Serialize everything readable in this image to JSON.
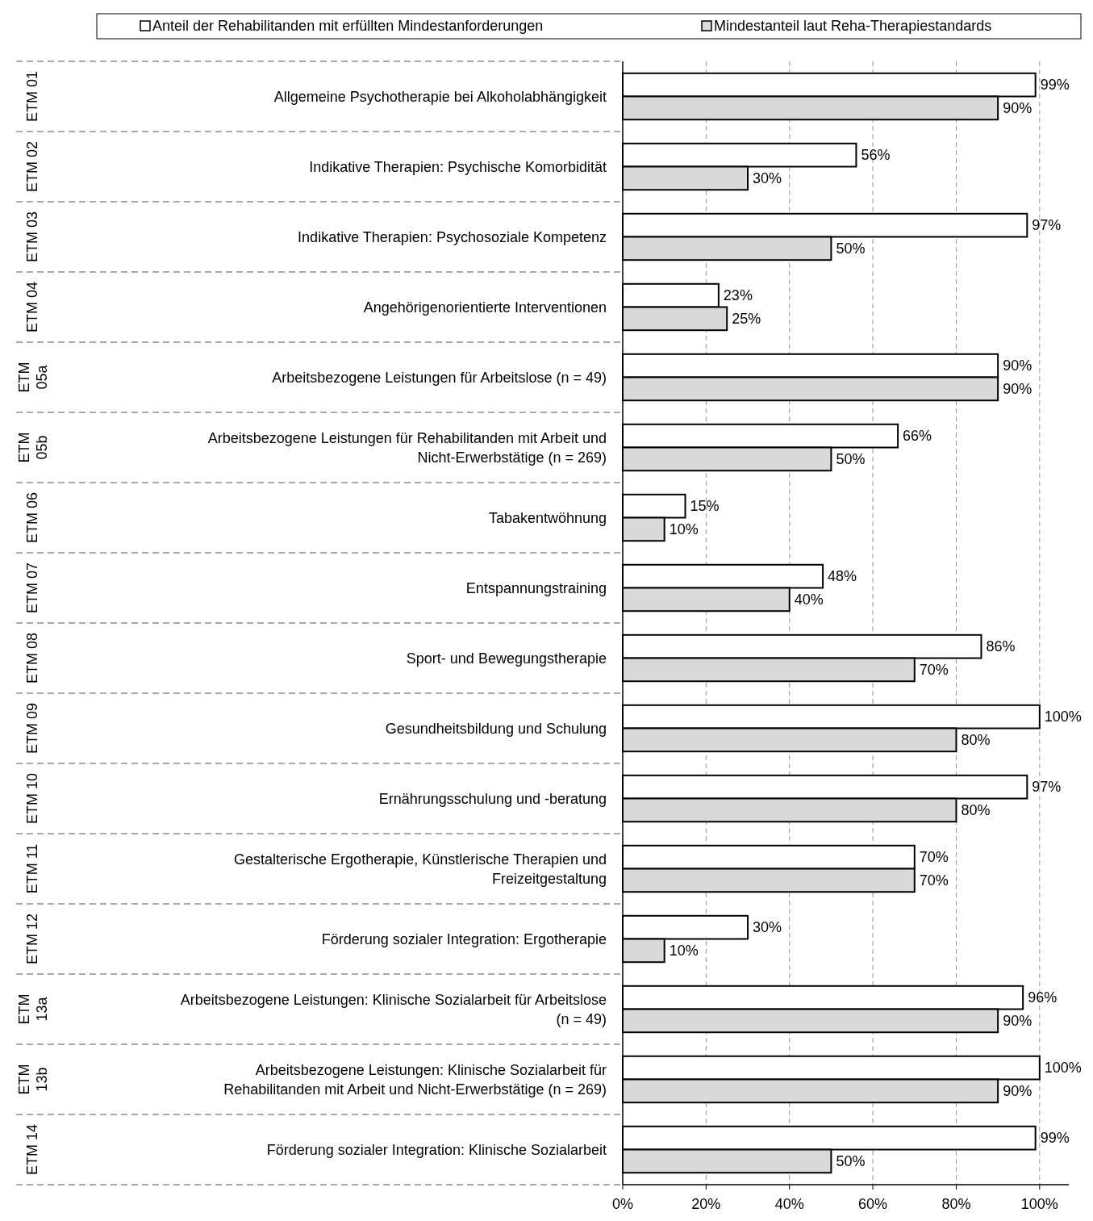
{
  "chart_data": {
    "type": "bar",
    "orientation": "horizontal",
    "categories": [
      "Allgemeine Psychotherapie bei Alkoholabhängigkeit",
      "Indikative Therapien: Psychische Komorbidität",
      "Indikative Therapien: Psychosoziale Kompetenz",
      "Angehörigenorientierte Interventionen",
      "Arbeitsbezogene Leistungen für Arbeitslose (n = 49)",
      "Arbeitsbezogene Leistungen für Rehabilitanden mit Arbeit und Nicht-Erwerbstätige (n = 269)",
      "Tabakentwöhnung",
      "Entspannungstraining",
      "Sport- und Bewegungstherapie",
      "Gesundheitsbildung und Schulung",
      "Ernährungsschulung und -beratung",
      "Gestalterische Ergotherapie, Künstlerische Therapien und Freizeitgestaltung",
      "Förderung sozialer Integration: Ergotherapie",
      "Arbeitsbezogene Leistungen: Klinische Sozialarbeit für Arbeitslose (n = 49)",
      "Arbeitsbezogene Leistungen: Klinische Sozialarbeit  für Rehabilitanden mit Arbeit und Nicht-Erwerbstätige (n = 269)",
      "Förderung sozialer Integration: Klinische Sozialarbeit"
    ],
    "series": [
      {
        "name": "Anteil der Rehabilitanden mit erfüllten Mindestanforderungen",
        "color": "#ffffff",
        "values": [
          99,
          56,
          97,
          23,
          90,
          66,
          15,
          48,
          86,
          100,
          97,
          70,
          30,
          96,
          100,
          99
        ],
        "value_labels": [
          "99%",
          "56%",
          "97%",
          "23%",
          "90%",
          "66%",
          "15%",
          "48%",
          "86%",
          "100%",
          "97%",
          "70%",
          "30%",
          "96%",
          "100%",
          "99%"
        ]
      },
      {
        "name": "Mindestanteil laut Reha-Therapiestandards",
        "color": "#d9d9d9",
        "values": [
          90,
          30,
          50,
          25,
          90,
          50,
          10,
          40,
          70,
          80,
          80,
          70,
          10,
          90,
          90,
          50
        ],
        "value_labels": [
          "90%",
          "30%",
          "50%",
          "25%",
          "90%",
          "50%",
          "10%",
          "40%",
          "70%",
          "80%",
          "80%",
          "70%",
          "10%",
          "90%",
          "90%",
          "50%"
        ]
      }
    ],
    "xlim": [
      0,
      107
    ],
    "xticks": [
      {
        "value": 0,
        "label": "0%"
      },
      {
        "value": 20,
        "label": "20%"
      },
      {
        "value": 40,
        "label": "40%"
      },
      {
        "value": 60,
        "label": "60%"
      },
      {
        "value": 80,
        "label": "80%"
      },
      {
        "value": 100,
        "label": "100%"
      }
    ],
    "grid": "x",
    "legend": "top",
    "annotations": [
      "ETM 01",
      "ETM 02",
      "ETM 03",
      "ETM 04",
      "ETM 05a",
      "ETM 05b",
      "ETM 06",
      "ETM 07",
      "ETM 08",
      "ETM 09",
      "ETM 10",
      "ETM 11",
      "ETM 12",
      "ETM 13a",
      "ETM 13b",
      "ETM 14"
    ]
  }
}
